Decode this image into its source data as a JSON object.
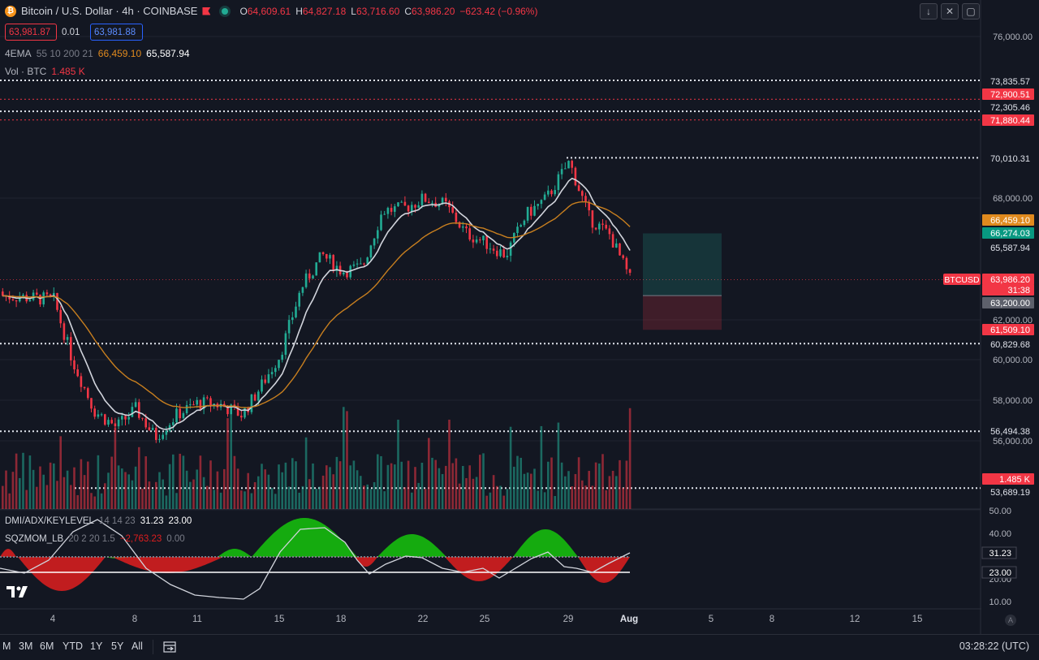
{
  "header": {
    "symbol_title": "Bitcoin / U.S. Dollar · 4h · COINBASE",
    "coin_glyph": "₿",
    "ohlc": [
      {
        "key": "O",
        "value": "64,609.61"
      },
      {
        "key": "H",
        "value": "64,827.18"
      },
      {
        "key": "L",
        "value": "63,716.60"
      },
      {
        "key": "C",
        "value": "63,986.20"
      }
    ],
    "change": "−623.42 (−0.96%)",
    "sell_price": "63,981.87",
    "spread": "0.01",
    "buy_price": "63,981.88"
  },
  "indicators": {
    "ema_name": "4EMA",
    "ema_params": "55 10 200 21",
    "ema_value_1": "66,459.10",
    "ema_value_2": "65,587.94",
    "vol_name": "Vol · BTC",
    "vol_value": "1.485 K",
    "dmi_name": "DMI/ADX/KEYLEVEL",
    "dmi_params": "14 14 23",
    "dmi_value_1": "31.23",
    "dmi_value_2": "23.00",
    "sqz_name": "SQZMOM_LB",
    "sqz_params": "20 2 20 1.5",
    "sqz_value_1": "−2,763.23",
    "sqz_value_2": "0.00"
  },
  "toolbar": {
    "icons": [
      "arrow-down-icon",
      "collapse-icon",
      "fullscreen-icon"
    ]
  },
  "price_axis": {
    "ticks": [
      "76,000.00",
      "68,000.00",
      "62,000.00",
      "60,000.00",
      "58,000.00",
      "56,000.00"
    ],
    "labels": [
      {
        "text": "73,835.57",
        "kind": "white"
      },
      {
        "text": "72,900.51",
        "kind": "red"
      },
      {
        "text": "72,305.46",
        "kind": "white"
      },
      {
        "text": "71,880.44",
        "kind": "red"
      },
      {
        "text": "70,010.31",
        "kind": "white"
      },
      {
        "text": "66,459.10",
        "kind": "orange"
      },
      {
        "text": "66,274.03",
        "kind": "teal"
      },
      {
        "text": "65,587.94",
        "kind": "white"
      },
      {
        "text": "63,986.20",
        "kind": "red"
      },
      {
        "text": "31:38",
        "kind": "red"
      },
      {
        "text": "63,200.00",
        "kind": "gray"
      },
      {
        "text": "61,509.10",
        "kind": "red"
      },
      {
        "text": "60,829.68",
        "kind": "white"
      },
      {
        "text": "56,494.38",
        "kind": "white"
      },
      {
        "text": "1.485 K",
        "kind": "red"
      },
      {
        "text": "53,689.19",
        "kind": "white"
      }
    ],
    "symbol_tag": "BTCUSD"
  },
  "indicator_axis": {
    "ticks": [
      "50.00",
      "40.00",
      "20.00",
      "10.00"
    ],
    "labels": [
      "31.23",
      "23.00"
    ]
  },
  "time_axis": {
    "ticks": [
      "4",
      "8",
      "11",
      "15",
      "18",
      "22",
      "25",
      "29",
      "Aug",
      "5",
      "8",
      "12",
      "15"
    ]
  },
  "bottom": {
    "ranges": [
      "M",
      "3M",
      "6M",
      "YTD",
      "1Y",
      "5Y",
      "All"
    ],
    "clock": "03:28:22 (UTC)",
    "auto_label": "A"
  },
  "colors": {
    "background": "#131722",
    "up": "#22ab94",
    "down": "#f23645",
    "ema_fast": "#d1d4dc",
    "ema_slow": "#c87f1f",
    "dmi_green": "#16c60c",
    "dmi_red": "#e01e1e"
  },
  "chart_data": {
    "type": "candlestick",
    "interval": "4h",
    "close_path": [
      [
        "4",
        63000
      ],
      [
        "5",
        60000
      ],
      [
        "6",
        57500
      ],
      [
        "7",
        56700
      ],
      [
        "8",
        57600
      ],
      [
        "9",
        56200
      ],
      [
        "10",
        57300
      ],
      [
        "11",
        57900
      ],
      [
        "12",
        57800
      ],
      [
        "13",
        57300
      ],
      [
        "14",
        58700
      ],
      [
        "15",
        60300
      ],
      [
        "16",
        63600
      ],
      [
        "17",
        65200
      ],
      [
        "18",
        64400
      ],
      [
        "19",
        64600
      ],
      [
        "20",
        67400
      ],
      [
        "21",
        67500
      ],
      [
        "22",
        68000
      ],
      [
        "23",
        67700
      ],
      [
        "24",
        66300
      ],
      [
        "25",
        65800
      ],
      [
        "26",
        65200
      ],
      [
        "27",
        67200
      ],
      [
        "28",
        68000
      ],
      [
        "29",
        69800
      ],
      [
        "30",
        67000
      ],
      [
        "31",
        66200
      ],
      [
        "Aug",
        63986
      ]
    ],
    "ylim": [
      53000,
      77000
    ],
    "horizontal_levels": [
      73835.57,
      72900.51,
      72305.46,
      71880.44,
      70010.31,
      60829.68,
      56494.38,
      53689.19
    ],
    "position_tool": {
      "target": 66274.03,
      "entry": 63200.0,
      "stop": 61509.1
    }
  }
}
